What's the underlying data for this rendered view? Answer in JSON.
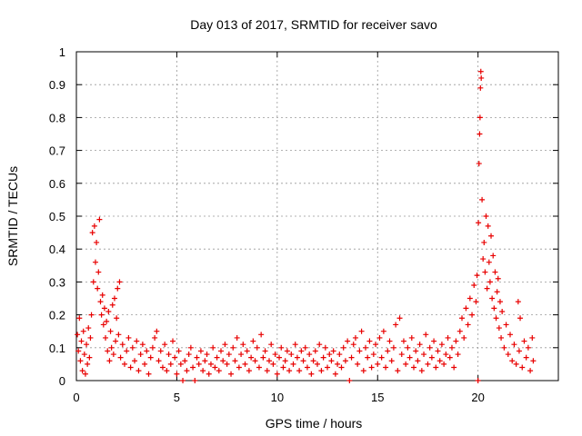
{
  "chart_data": {
    "type": "scatter",
    "title": "Day 013 of 2017, SRMTID for receiver savo",
    "xlabel": "GPS time / hours",
    "ylabel": "SRMTID / TECUs",
    "xlim": [
      0,
      24
    ],
    "ylim": [
      0,
      1
    ],
    "xticks": [
      0,
      5,
      10,
      15,
      20
    ],
    "yticks": [
      0,
      0.1,
      0.2,
      0.3,
      0.4,
      0.5,
      0.6,
      0.7,
      0.8,
      0.9,
      1
    ],
    "xtick_labels": [
      "0",
      "5",
      "10",
      "15",
      "20"
    ],
    "ytick_labels": [
      "0",
      "0.1",
      "0.2",
      "0.3",
      "0.4",
      "0.5",
      "0.6",
      "0.7",
      "0.8",
      "0.9",
      "1"
    ],
    "grid": true,
    "marker": "plus",
    "color": "#e80000",
    "series": [
      {
        "name": "SRMTID",
        "points": [
          [
            0.05,
            0.14
          ],
          [
            0.1,
            0.09
          ],
          [
            0.15,
            0.19
          ],
          [
            0.2,
            0.06
          ],
          [
            0.25,
            0.12
          ],
          [
            0.3,
            0.03
          ],
          [
            0.35,
            0.15
          ],
          [
            0.4,
            0.08
          ],
          [
            0.45,
            0.02
          ],
          [
            0.5,
            0.11
          ],
          [
            0.55,
            0.05
          ],
          [
            0.6,
            0.16
          ],
          [
            0.65,
            0.07
          ],
          [
            0.7,
            0.13
          ],
          [
            0.75,
            0.2
          ],
          [
            0.8,
            0.45
          ],
          [
            0.85,
            0.3
          ],
          [
            0.9,
            0.47
          ],
          [
            0.95,
            0.36
          ],
          [
            1.0,
            0.42
          ],
          [
            1.05,
            0.28
          ],
          [
            1.1,
            0.33
          ],
          [
            1.15,
            0.49
          ],
          [
            1.2,
            0.24
          ],
          [
            1.25,
            0.2
          ],
          [
            1.3,
            0.26
          ],
          [
            1.35,
            0.17
          ],
          [
            1.4,
            0.22
          ],
          [
            1.45,
            0.13
          ],
          [
            1.5,
            0.18
          ],
          [
            1.55,
            0.09
          ],
          [
            1.6,
            0.21
          ],
          [
            1.65,
            0.06
          ],
          [
            1.7,
            0.15
          ],
          [
            1.75,
            0.1
          ],
          [
            1.8,
            0.23
          ],
          [
            1.85,
            0.08
          ],
          [
            1.9,
            0.25
          ],
          [
            1.95,
            0.12
          ],
          [
            2.0,
            0.19
          ],
          [
            2.05,
            0.28
          ],
          [
            2.1,
            0.14
          ],
          [
            2.15,
            0.3
          ],
          [
            2.2,
            0.07
          ],
          [
            2.3,
            0.11
          ],
          [
            2.4,
            0.05
          ],
          [
            2.5,
            0.09
          ],
          [
            2.6,
            0.13
          ],
          [
            2.7,
            0.04
          ],
          [
            2.8,
            0.1
          ],
          [
            2.9,
            0.06
          ],
          [
            3.0,
            0.12
          ],
          [
            3.1,
            0.03
          ],
          [
            3.2,
            0.08
          ],
          [
            3.3,
            0.11
          ],
          [
            3.4,
            0.05
          ],
          [
            3.5,
            0.09
          ],
          [
            3.6,
            0.02
          ],
          [
            3.7,
            0.07
          ],
          [
            3.8,
            0.1
          ],
          [
            3.9,
            0.13
          ],
          [
            4.0,
            0.15
          ],
          [
            4.1,
            0.06
          ],
          [
            4.2,
            0.09
          ],
          [
            4.3,
            0.04
          ],
          [
            4.4,
            0.11
          ],
          [
            4.5,
            0.03
          ],
          [
            4.6,
            0.08
          ],
          [
            4.7,
            0.05
          ],
          [
            4.8,
            0.12
          ],
          [
            4.9,
            0.07
          ],
          [
            5.0,
            0.02
          ],
          [
            5.1,
            0.09
          ],
          [
            5.2,
            0.05
          ],
          [
            5.3,
            0.0
          ],
          [
            5.4,
            0.06
          ],
          [
            5.5,
            0.03
          ],
          [
            5.6,
            0.08
          ],
          [
            5.7,
            0.1
          ],
          [
            5.8,
            0.04
          ],
          [
            5.9,
            0.0
          ],
          [
            6.0,
            0.07
          ],
          [
            6.1,
            0.05
          ],
          [
            6.2,
            0.09
          ],
          [
            6.3,
            0.03
          ],
          [
            6.4,
            0.06
          ],
          [
            6.5,
            0.08
          ],
          [
            6.6,
            0.02
          ],
          [
            6.7,
            0.05
          ],
          [
            6.8,
            0.1
          ],
          [
            6.9,
            0.04
          ],
          [
            7.0,
            0.07
          ],
          [
            7.1,
            0.03
          ],
          [
            7.2,
            0.09
          ],
          [
            7.3,
            0.06
          ],
          [
            7.4,
            0.11
          ],
          [
            7.5,
            0.05
          ],
          [
            7.6,
            0.08
          ],
          [
            7.7,
            0.02
          ],
          [
            7.8,
            0.1
          ],
          [
            7.9,
            0.06
          ],
          [
            8.0,
            0.13
          ],
          [
            8.1,
            0.04
          ],
          [
            8.2,
            0.08
          ],
          [
            8.3,
            0.11
          ],
          [
            8.4,
            0.05
          ],
          [
            8.5,
            0.09
          ],
          [
            8.6,
            0.03
          ],
          [
            8.7,
            0.07
          ],
          [
            8.8,
            0.12
          ],
          [
            8.9,
            0.06
          ],
          [
            9.0,
            0.1
          ],
          [
            9.1,
            0.04
          ],
          [
            9.2,
            0.14
          ],
          [
            9.3,
            0.07
          ],
          [
            9.4,
            0.09
          ],
          [
            9.5,
            0.03
          ],
          [
            9.6,
            0.06
          ],
          [
            9.7,
            0.11
          ],
          [
            9.8,
            0.05
          ],
          [
            9.9,
            0.08
          ],
          [
            10.0,
            0.02
          ],
          [
            10.1,
            0.07
          ],
          [
            10.2,
            0.1
          ],
          [
            10.3,
            0.04
          ],
          [
            10.4,
            0.06
          ],
          [
            10.5,
            0.09
          ],
          [
            10.6,
            0.03
          ],
          [
            10.7,
            0.08
          ],
          [
            10.8,
            0.05
          ],
          [
            10.9,
            0.11
          ],
          [
            11.0,
            0.07
          ],
          [
            11.1,
            0.03
          ],
          [
            11.2,
            0.09
          ],
          [
            11.3,
            0.06
          ],
          [
            11.4,
            0.1
          ],
          [
            11.5,
            0.04
          ],
          [
            11.6,
            0.08
          ],
          [
            11.7,
            0.02
          ],
          [
            11.8,
            0.06
          ],
          [
            11.9,
            0.09
          ],
          [
            12.0,
            0.05
          ],
          [
            12.1,
            0.11
          ],
          [
            12.2,
            0.03
          ],
          [
            12.3,
            0.07
          ],
          [
            12.4,
            0.1
          ],
          [
            12.5,
            0.04
          ],
          [
            12.6,
            0.08
          ],
          [
            12.7,
            0.06
          ],
          [
            12.8,
            0.09
          ],
          [
            12.9,
            0.02
          ],
          [
            13.0,
            0.05
          ],
          [
            13.1,
            0.08
          ],
          [
            13.2,
            0.04
          ],
          [
            13.3,
            0.1
          ],
          [
            13.4,
            0.06
          ],
          [
            13.5,
            0.12
          ],
          [
            13.6,
            0.0
          ],
          [
            13.7,
            0.07
          ],
          [
            13.8,
            0.11
          ],
          [
            13.9,
            0.13
          ],
          [
            14.0,
            0.05
          ],
          [
            14.1,
            0.09
          ],
          [
            14.2,
            0.15
          ],
          [
            14.3,
            0.03
          ],
          [
            14.4,
            0.1
          ],
          [
            14.5,
            0.07
          ],
          [
            14.6,
            0.12
          ],
          [
            14.7,
            0.04
          ],
          [
            14.8,
            0.08
          ],
          [
            14.9,
            0.11
          ],
          [
            15.0,
            0.05
          ],
          [
            15.1,
            0.13
          ],
          [
            15.2,
            0.07
          ],
          [
            15.3,
            0.15
          ],
          [
            15.4,
            0.04
          ],
          [
            15.5,
            0.09
          ],
          [
            15.6,
            0.12
          ],
          [
            15.7,
            0.06
          ],
          [
            15.8,
            0.1
          ],
          [
            15.9,
            0.17
          ],
          [
            16.0,
            0.03
          ],
          [
            16.1,
            0.19
          ],
          [
            16.2,
            0.08
          ],
          [
            16.3,
            0.12
          ],
          [
            16.4,
            0.05
          ],
          [
            16.5,
            0.1
          ],
          [
            16.6,
            0.07
          ],
          [
            16.7,
            0.13
          ],
          [
            16.8,
            0.04
          ],
          [
            16.9,
            0.09
          ],
          [
            17.0,
            0.06
          ],
          [
            17.1,
            0.11
          ],
          [
            17.2,
            0.03
          ],
          [
            17.3,
            0.08
          ],
          [
            17.4,
            0.14
          ],
          [
            17.5,
            0.05
          ],
          [
            17.6,
            0.1
          ],
          [
            17.7,
            0.07
          ],
          [
            17.8,
            0.12
          ],
          [
            17.9,
            0.04
          ],
          [
            18.0,
            0.09
          ],
          [
            18.1,
            0.06
          ],
          [
            18.2,
            0.11
          ],
          [
            18.3,
            0.05
          ],
          [
            18.4,
            0.08
          ],
          [
            18.5,
            0.13
          ],
          [
            18.6,
            0.07
          ],
          [
            18.7,
            0.1
          ],
          [
            18.8,
            0.04
          ],
          [
            18.9,
            0.12
          ],
          [
            19.0,
            0.08
          ],
          [
            19.1,
            0.15
          ],
          [
            19.2,
            0.19
          ],
          [
            19.3,
            0.13
          ],
          [
            19.4,
            0.22
          ],
          [
            19.5,
            0.17
          ],
          [
            19.6,
            0.25
          ],
          [
            19.7,
            0.2
          ],
          [
            19.8,
            0.29
          ],
          [
            19.9,
            0.24
          ],
          [
            19.95,
            0.32
          ],
          [
            20.0,
            0.0
          ],
          [
            20.02,
            0.48
          ],
          [
            20.05,
            0.66
          ],
          [
            20.08,
            0.75
          ],
          [
            20.1,
            0.8
          ],
          [
            20.12,
            0.89
          ],
          [
            20.14,
            0.94
          ],
          [
            20.16,
            0.92
          ],
          [
            20.2,
            0.55
          ],
          [
            20.25,
            0.37
          ],
          [
            20.3,
            0.42
          ],
          [
            20.35,
            0.33
          ],
          [
            20.4,
            0.5
          ],
          [
            20.45,
            0.28
          ],
          [
            20.5,
            0.47
          ],
          [
            20.55,
            0.36
          ],
          [
            20.6,
            0.3
          ],
          [
            20.65,
            0.44
          ],
          [
            20.7,
            0.25
          ],
          [
            20.75,
            0.38
          ],
          [
            20.8,
            0.22
          ],
          [
            20.85,
            0.33
          ],
          [
            20.9,
            0.19
          ],
          [
            20.95,
            0.27
          ],
          [
            21.0,
            0.31
          ],
          [
            21.05,
            0.16
          ],
          [
            21.1,
            0.24
          ],
          [
            21.15,
            0.13
          ],
          [
            21.2,
            0.21
          ],
          [
            21.3,
            0.1
          ],
          [
            21.4,
            0.17
          ],
          [
            21.5,
            0.08
          ],
          [
            21.6,
            0.14
          ],
          [
            21.7,
            0.06
          ],
          [
            21.8,
            0.11
          ],
          [
            21.9,
            0.05
          ],
          [
            22.0,
            0.24
          ],
          [
            22.05,
            0.09
          ],
          [
            22.1,
            0.19
          ],
          [
            22.2,
            0.04
          ],
          [
            22.3,
            0.12
          ],
          [
            22.4,
            0.07
          ],
          [
            22.5,
            0.1
          ],
          [
            22.6,
            0.03
          ],
          [
            22.7,
            0.13
          ],
          [
            22.75,
            0.06
          ]
        ]
      }
    ]
  }
}
